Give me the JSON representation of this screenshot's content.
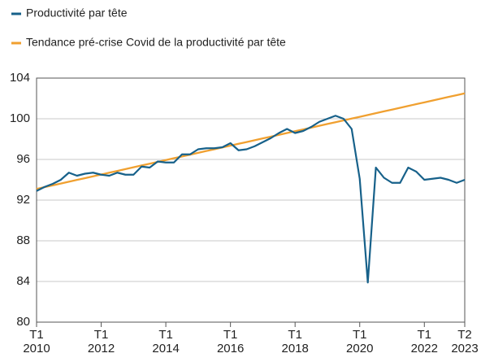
{
  "chart_data": {
    "type": "line",
    "categories": [
      "T1 2010",
      null,
      null,
      null,
      null,
      null,
      null,
      null,
      "T1 2012",
      null,
      null,
      null,
      null,
      null,
      null,
      null,
      "T1 2014",
      null,
      null,
      null,
      null,
      null,
      null,
      null,
      "T1 2016",
      null,
      null,
      null,
      null,
      null,
      null,
      null,
      "T1 2018",
      null,
      null,
      null,
      null,
      null,
      null,
      null,
      "T1 2020",
      null,
      null,
      null,
      null,
      null,
      null,
      null,
      "T1 2022",
      null,
      null,
      null,
      null,
      "T2 2023"
    ],
    "series": [
      {
        "name": "Productivité par tête",
        "color": "#17618a",
        "values": [
          92.9,
          93.3,
          93.6,
          94.0,
          94.7,
          94.4,
          94.6,
          94.7,
          94.5,
          94.4,
          94.7,
          94.5,
          94.5,
          95.3,
          95.2,
          95.8,
          95.7,
          95.7,
          96.5,
          96.5,
          97.0,
          97.1,
          97.1,
          97.2,
          97.6,
          96.9,
          97.0,
          97.3,
          97.7,
          98.1,
          98.6,
          99.0,
          98.6,
          98.8,
          99.2,
          99.7,
          100.0,
          100.3,
          100.0,
          99.0,
          94.1,
          83.9,
          95.2,
          94.2,
          93.7,
          93.7,
          95.2,
          94.8,
          94.0,
          94.1,
          94.2,
          94.0,
          93.7,
          94.0
        ]
      },
      {
        "name": "Tendance pré-crise Covid de la productivité par tête",
        "color": "#f0a030",
        "values": [
          93.1,
          93.28,
          93.45,
          93.63,
          93.81,
          93.99,
          94.16,
          94.34,
          94.52,
          94.7,
          94.87,
          95.05,
          95.23,
          95.41,
          95.58,
          95.76,
          95.94,
          96.12,
          96.29,
          96.47,
          96.65,
          96.83,
          97.0,
          97.18,
          97.36,
          97.54,
          97.71,
          97.89,
          98.07,
          98.24,
          98.42,
          98.6,
          98.78,
          98.95,
          99.13,
          99.31,
          99.49,
          99.66,
          99.84,
          100.02,
          100.19,
          100.37,
          100.55,
          100.73,
          100.9,
          101.08,
          101.26,
          101.44,
          101.61,
          101.79,
          101.97,
          102.15,
          102.32,
          102.5
        ]
      }
    ],
    "ylim": [
      80,
      104
    ],
    "yticks": [
      80,
      84,
      88,
      92,
      96,
      100,
      104
    ],
    "grid": true
  }
}
